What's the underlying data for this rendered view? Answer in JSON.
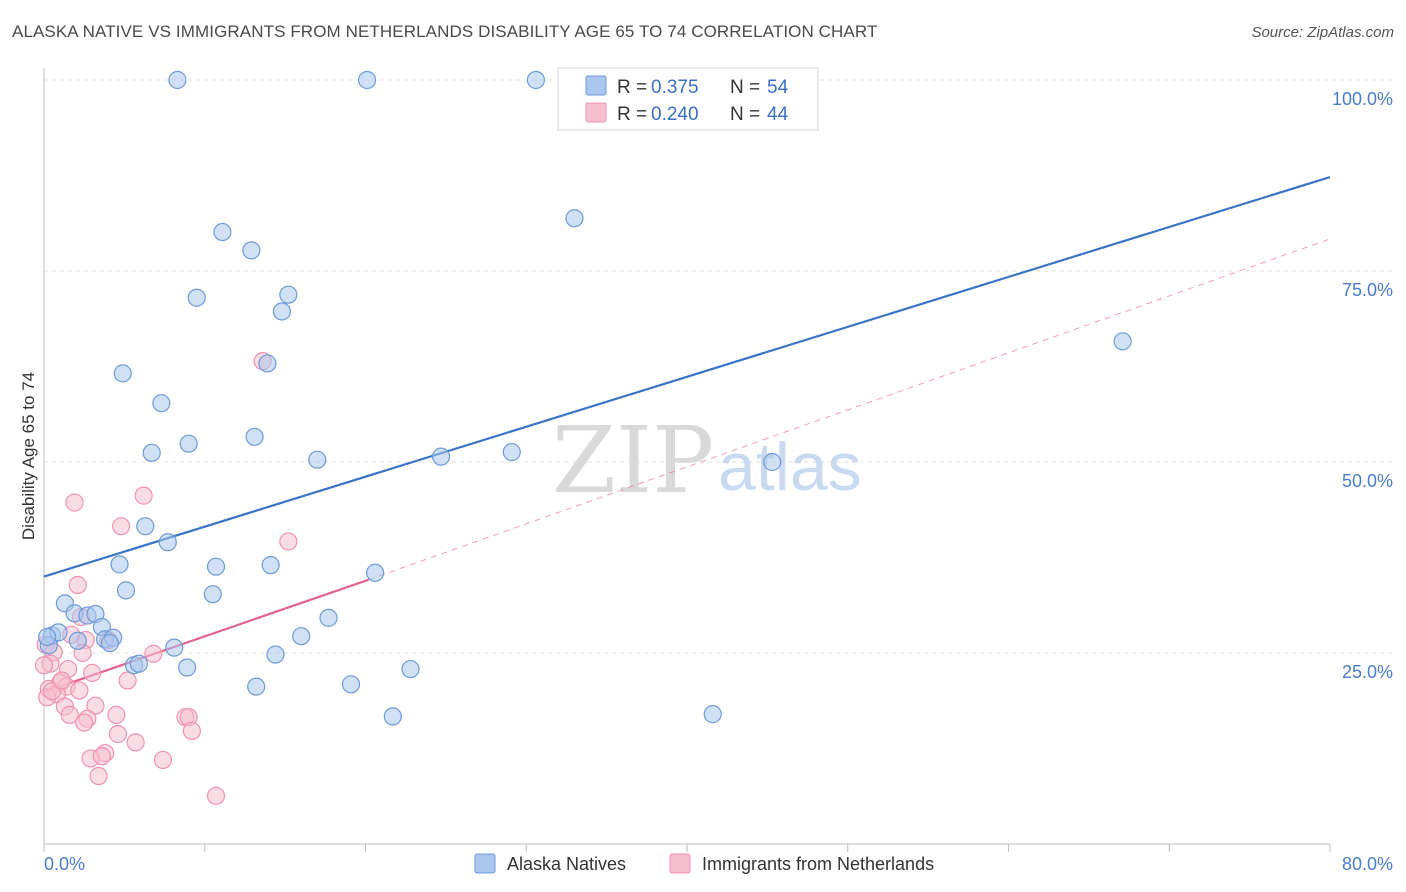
{
  "title": "ALASKA NATIVE VS IMMIGRANTS FROM NETHERLANDS DISABILITY AGE 65 TO 74 CORRELATION CHART",
  "source": "Source: ZipAtlas.com",
  "watermark": {
    "zip": "ZIP",
    "atlas": "atlas"
  },
  "colors": {
    "blue_fill": "#a9c6ec",
    "blue_stroke": "#6f9bd8",
    "blue_line": "#3a74c9",
    "pink_fill": "#f6bfd0",
    "pink_stroke": "#ee93b0",
    "pink_line": "#e2638e",
    "axis_label": "#4a7cc9",
    "grid": "#e2e2e2"
  },
  "legend": {
    "r_label": "R =",
    "n_label": "N =",
    "rows": [
      {
        "r": "0.375",
        "n": "54"
      },
      {
        "r": "0.240",
        "n": "44"
      }
    ]
  },
  "bottom_legend": [
    "Alaska Natives",
    "Immigrants from Netherlands"
  ],
  "chart_data": {
    "type": "scatter",
    "ylabel": "Disability Age 65 to 74",
    "xlim": [
      0,
      80
    ],
    "ylim": [
      0,
      100
    ],
    "x_tick_labels": [
      "0.0%",
      "80.0%"
    ],
    "y_tick_values": [
      25,
      50,
      75,
      100
    ],
    "y_tick_labels": [
      "25.0%",
      "50.0%",
      "75.0%",
      "100.0%"
    ],
    "grid": true,
    "legend_position": "top-center",
    "series": [
      {
        "name": "Alaska Natives",
        "color": "#a9c6ec",
        "trend": {
          "x": [
            0,
            80
          ],
          "y": [
            35,
            87.3
          ],
          "style": "solid"
        },
        "points": [
          [
            8.3,
            100
          ],
          [
            20.1,
            100
          ],
          [
            30.6,
            100
          ],
          [
            44.9,
            100
          ],
          [
            11.1,
            80.1
          ],
          [
            12.9,
            77.7
          ],
          [
            33.0,
            81.9
          ],
          [
            9.5,
            71.5
          ],
          [
            15.2,
            71.9
          ],
          [
            14.8,
            69.7
          ],
          [
            4.9,
            61.6
          ],
          [
            13.9,
            62.9
          ],
          [
            7.3,
            57.7
          ],
          [
            13.1,
            53.3
          ],
          [
            9.0,
            52.4
          ],
          [
            6.7,
            51.2
          ],
          [
            17.0,
            50.3
          ],
          [
            24.7,
            50.7
          ],
          [
            29.1,
            51.3
          ],
          [
            45.3,
            50.0
          ],
          [
            67.1,
            65.8
          ],
          [
            6.3,
            41.6
          ],
          [
            7.7,
            39.5
          ],
          [
            4.7,
            36.6
          ],
          [
            10.7,
            36.3
          ],
          [
            14.1,
            36.5
          ],
          [
            20.6,
            35.5
          ],
          [
            5.1,
            33.2
          ],
          [
            10.5,
            32.7
          ],
          [
            1.3,
            31.5
          ],
          [
            1.9,
            30.2
          ],
          [
            2.7,
            29.9
          ],
          [
            3.2,
            30.1
          ],
          [
            17.7,
            29.6
          ],
          [
            3.6,
            28.4
          ],
          [
            0.5,
            27.3
          ],
          [
            0.9,
            27.7
          ],
          [
            2.1,
            26.6
          ],
          [
            3.8,
            26.8
          ],
          [
            4.3,
            27.0
          ],
          [
            16.0,
            27.2
          ],
          [
            8.1,
            25.7
          ],
          [
            0.3,
            26.0
          ],
          [
            14.4,
            24.8
          ],
          [
            5.6,
            23.4
          ],
          [
            5.9,
            23.6
          ],
          [
            8.9,
            23.1
          ],
          [
            22.8,
            22.9
          ],
          [
            13.2,
            20.6
          ],
          [
            19.1,
            20.9
          ],
          [
            21.7,
            16.7
          ],
          [
            41.6,
            17.0
          ],
          [
            0.2,
            27.1
          ],
          [
            4.1,
            26.3
          ]
        ]
      },
      {
        "name": "Immigrants from Netherlands",
        "color": "#f6bfd0",
        "trend": {
          "x": [
            0,
            20.2
          ],
          "y": [
            19.9,
            34.6
          ],
          "style": "solid",
          "dashed_to": [
            80,
            79.2
          ]
        },
        "points": [
          [
            13.6,
            63.2
          ],
          [
            1.9,
            44.7
          ],
          [
            6.2,
            45.6
          ],
          [
            4.8,
            41.6
          ],
          [
            15.2,
            39.6
          ],
          [
            2.1,
            33.9
          ],
          [
            2.3,
            29.7
          ],
          [
            1.7,
            27.4
          ],
          [
            2.6,
            26.7
          ],
          [
            0.1,
            26.1
          ],
          [
            0.6,
            25.1
          ],
          [
            2.4,
            25.0
          ],
          [
            4.0,
            26.7
          ],
          [
            6.8,
            24.9
          ],
          [
            0.4,
            23.6
          ],
          [
            1.5,
            22.9
          ],
          [
            3.0,
            22.4
          ],
          [
            5.2,
            21.4
          ],
          [
            1.0,
            21.1
          ],
          [
            1.4,
            20.6
          ],
          [
            2.2,
            20.1
          ],
          [
            0.3,
            20.3
          ],
          [
            0.8,
            19.6
          ],
          [
            0.2,
            19.2
          ],
          [
            1.3,
            18.0
          ],
          [
            3.2,
            18.1
          ],
          [
            1.6,
            16.9
          ],
          [
            2.7,
            16.4
          ],
          [
            4.5,
            16.9
          ],
          [
            8.8,
            16.6
          ],
          [
            9.0,
            16.6
          ],
          [
            2.5,
            15.9
          ],
          [
            9.2,
            14.8
          ],
          [
            4.6,
            14.4
          ],
          [
            5.7,
            13.3
          ],
          [
            3.8,
            11.9
          ],
          [
            2.9,
            11.2
          ],
          [
            7.4,
            11.0
          ],
          [
            3.6,
            11.5
          ],
          [
            3.4,
            8.9
          ],
          [
            10.7,
            6.3
          ],
          [
            0.5,
            20.0
          ],
          [
            1.1,
            21.4
          ],
          [
            0.0,
            23.4
          ]
        ]
      }
    ]
  }
}
